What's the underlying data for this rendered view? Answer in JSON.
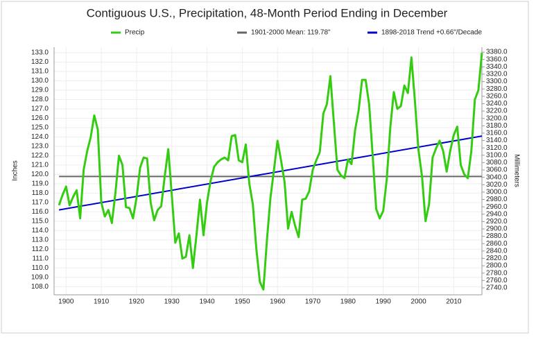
{
  "chart_data": {
    "type": "line",
    "title": "Contiguous U.S., Precipitation, 48-Month Period Ending in December",
    "y_label": "Inches",
    "y2_label": "Millimeters",
    "xlim": [
      1896.6,
      2018
    ],
    "ylim": [
      107.5,
      133.3
    ],
    "y2lim": [
      2730.5,
      3385.8
    ],
    "grid": true,
    "legend": "top",
    "xticks": [
      1900,
      1910,
      1920,
      1930,
      1940,
      1950,
      1960,
      1970,
      1980,
      1990,
      2000,
      2010
    ],
    "yticks": [
      {
        "value": 108,
        "label": "108.0"
      },
      {
        "value": 109,
        "label": "109.0"
      },
      {
        "value": 110,
        "label": "110.0"
      },
      {
        "value": 111,
        "label": "111.0"
      },
      {
        "value": 112,
        "label": "112.0"
      },
      {
        "value": 113,
        "label": "113.0"
      },
      {
        "value": 114,
        "label": "114.0"
      },
      {
        "value": 115,
        "label": "115.0"
      },
      {
        "value": 116,
        "label": "116.0"
      },
      {
        "value": 117,
        "label": "117.0"
      },
      {
        "value": 118,
        "label": "118.0"
      },
      {
        "value": 119,
        "label": "119.0"
      },
      {
        "value": 120,
        "label": "120.0"
      },
      {
        "value": 121,
        "label": "121.0"
      },
      {
        "value": 122,
        "label": "122.0"
      },
      {
        "value": 123,
        "label": "123.0"
      },
      {
        "value": 124,
        "label": "124.0"
      },
      {
        "value": 125,
        "label": "125.0"
      },
      {
        "value": 126,
        "label": "126.0"
      },
      {
        "value": 127,
        "label": "127.0"
      },
      {
        "value": 128,
        "label": "128.0"
      },
      {
        "value": 129,
        "label": "129.0"
      },
      {
        "value": 130,
        "label": "130.0"
      },
      {
        "value": 131,
        "label": "131.0"
      },
      {
        "value": 132,
        "label": "132.0"
      },
      {
        "value": 133,
        "label": "133.0"
      }
    ],
    "y2ticks": [
      {
        "value": 2740,
        "label": "2740.0"
      },
      {
        "value": 2760,
        "label": "2760.0"
      },
      {
        "value": 2780,
        "label": "2780.0"
      },
      {
        "value": 2800,
        "label": "2800.0"
      },
      {
        "value": 2820,
        "label": "2820.0"
      },
      {
        "value": 2840,
        "label": "2840.0"
      },
      {
        "value": 2860,
        "label": "2860.0"
      },
      {
        "value": 2880,
        "label": "2880.0"
      },
      {
        "value": 2900,
        "label": "2900.0"
      },
      {
        "value": 2920,
        "label": "2920.0"
      },
      {
        "value": 2940,
        "label": "2940.0"
      },
      {
        "value": 2960,
        "label": "2960.0"
      },
      {
        "value": 2980,
        "label": "2980.0"
      },
      {
        "value": 3000,
        "label": "3000.0"
      },
      {
        "value": 3020,
        "label": "3020.0"
      },
      {
        "value": 3040,
        "label": "3040.0"
      },
      {
        "value": 3060,
        "label": "3060.0"
      },
      {
        "value": 3080,
        "label": "3080.0"
      },
      {
        "value": 3100,
        "label": "3100.0"
      },
      {
        "value": 3120,
        "label": "3120.0"
      },
      {
        "value": 3140,
        "label": "3140.0"
      },
      {
        "value": 3160,
        "label": "3160.0"
      },
      {
        "value": 3180,
        "label": "3180.0"
      },
      {
        "value": 3200,
        "label": "3200.0"
      },
      {
        "value": 3220,
        "label": "3220.0"
      },
      {
        "value": 3240,
        "label": "3240.0"
      },
      {
        "value": 3260,
        "label": "3260.0"
      },
      {
        "value": 3280,
        "label": "3280.0"
      },
      {
        "value": 3300,
        "label": "3300.0"
      },
      {
        "value": 3320,
        "label": "3320.0"
      },
      {
        "value": 3340,
        "label": "3340.0"
      },
      {
        "value": 3360,
        "label": "3360.0"
      },
      {
        "value": 3380,
        "label": "3380.0"
      }
    ],
    "series": [
      {
        "name": "Precip",
        "color": "#33cc11",
        "width": 3,
        "x": [
          1898,
          1899,
          1900,
          1901,
          1902,
          1903,
          1904,
          1905,
          1906,
          1907,
          1908,
          1909,
          1910,
          1911,
          1912,
          1913,
          1914,
          1915,
          1916,
          1917,
          1918,
          1919,
          1920,
          1921,
          1922,
          1923,
          1924,
          1925,
          1926,
          1927,
          1928,
          1929,
          1930,
          1931,
          1932,
          1933,
          1934,
          1935,
          1936,
          1937,
          1938,
          1939,
          1940,
          1941,
          1942,
          1943,
          1944,
          1945,
          1946,
          1947,
          1948,
          1949,
          1950,
          1951,
          1952,
          1953,
          1954,
          1955,
          1956,
          1957,
          1958,
          1959,
          1960,
          1961,
          1962,
          1963,
          1964,
          1965,
          1966,
          1967,
          1968,
          1969,
          1970,
          1971,
          1972,
          1973,
          1974,
          1975,
          1976,
          1977,
          1978,
          1979,
          1980,
          1981,
          1982,
          1983,
          1984,
          1985,
          1986,
          1987,
          1988,
          1989,
          1990,
          1991,
          1992,
          1993,
          1994,
          1995,
          1996,
          1997,
          1998,
          1999,
          2000,
          2001,
          2002,
          2003,
          2004,
          2005,
          2006,
          2007,
          2008,
          2009,
          2010,
          2011,
          2012,
          2013,
          2014,
          2015,
          2016,
          2017,
          2018
        ],
        "values": [
          116.7,
          117.8,
          118.7,
          116.7,
          117.6,
          118.3,
          115.3,
          120.5,
          122.5,
          124.0,
          126.3,
          124.8,
          117.0,
          115.5,
          116.2,
          114.8,
          118.0,
          122.0,
          121.0,
          116.5,
          116.4,
          115.3,
          117.5,
          120.7,
          121.8,
          121.7,
          117.0,
          115.1,
          116.2,
          116.6,
          119.8,
          122.7,
          117.8,
          112.7,
          113.7,
          111.0,
          111.2,
          113.5,
          110.0,
          113.5,
          117.3,
          113.5,
          117.0,
          119.3,
          120.8,
          121.3,
          121.6,
          121.8,
          121.5,
          124.1,
          124.2,
          121.5,
          121.3,
          123.2,
          119.0,
          116.8,
          112.0,
          108.5,
          107.7,
          113.0,
          117.5,
          120.5,
          123.6,
          121.5,
          119.2,
          114.2,
          116.0,
          114.5,
          113.3,
          117.3,
          117.4,
          118.2,
          120.5,
          121.5,
          122.4,
          126.5,
          127.5,
          130.5,
          125.5,
          120.5,
          119.9,
          119.6,
          121.6,
          121.1,
          124.7,
          126.8,
          130.1,
          130.1,
          127.5,
          122.0,
          116.3,
          115.3,
          116.1,
          119.5,
          125.0,
          128.8,
          127.0,
          127.3,
          129.5,
          128.7,
          132.5,
          127.8,
          122.6,
          119.8,
          115.0,
          116.8,
          121.8,
          122.8,
          123.6,
          122.5,
          120.3,
          122.5,
          124.2,
          125.1,
          121.0,
          120.0,
          119.6,
          122.5,
          128.0,
          129.0,
          133.0
        ]
      },
      {
        "name": "1901-2000 Mean: 119.78\"",
        "color": "#666666",
        "width": 2,
        "x": [
          1898,
          2018
        ],
        "values": [
          119.78,
          119.78
        ]
      },
      {
        "name": "1898-2018 Trend +0.66\"/Decade",
        "color": "#0000cc",
        "width": 2,
        "x": [
          1898,
          2018
        ],
        "values": [
          116.2,
          124.1
        ]
      }
    ]
  }
}
